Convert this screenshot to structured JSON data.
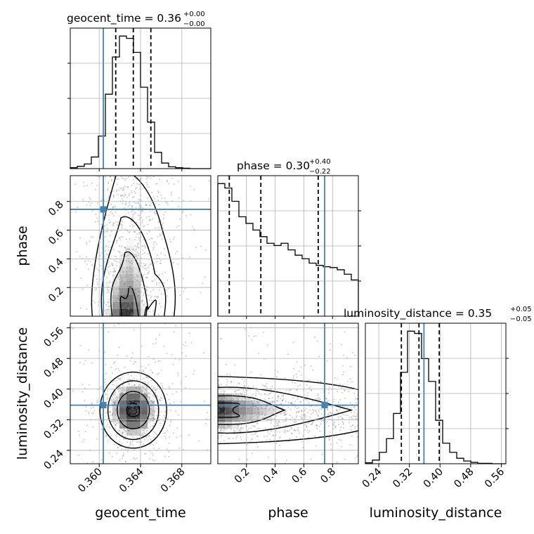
{
  "chart_data": {
    "type": "corner",
    "parameters": [
      "geocent_time",
      "phase",
      "luminosity_distance"
    ],
    "titles": [
      {
        "base": "geocent_time = 0.36",
        "sup": "+0.00",
        "sub": "−0.00"
      },
      {
        "base": "phase = 0.30",
        "sup": "+0.40",
        "sub": "−0.22"
      },
      {
        "base": "luminosity_distance = 0.35",
        "sup": "+0.05",
        "sub": "−0.05"
      }
    ],
    "axis_labels": {
      "x": [
        "geocent_time",
        "phase",
        "luminosity_distance"
      ],
      "y": [
        "phase",
        "luminosity_distance"
      ]
    },
    "ranges": {
      "geocent_time": [
        0.3572,
        0.3708
      ],
      "phase": [
        0.0,
        0.98
      ],
      "luminosity_distance": [
        0.205,
        0.572
      ]
    },
    "ticks": {
      "geocent_time": [
        0.36,
        0.364,
        0.368
      ],
      "phase": [
        0.2,
        0.4,
        0.6,
        0.8
      ],
      "luminosity_distance": [
        0.24,
        0.32,
        0.4,
        0.48,
        0.56
      ]
    },
    "tick_labels": {
      "geocent_time": [
        "0.360",
        "0.364",
        "0.368"
      ],
      "phase": [
        "0.2",
        "0.4",
        "0.6",
        "0.8"
      ],
      "luminosity_distance": [
        "0.24",
        "0.32",
        "0.40",
        "0.48",
        "0.56"
      ]
    },
    "truths": {
      "geocent_time": 0.3604,
      "phase": 0.745,
      "luminosity_distance": 0.358
    },
    "quantiles": {
      "geocent_time": [
        0.3616,
        0.3633,
        0.365
      ],
      "phase": [
        0.08,
        0.3,
        0.7
      ],
      "luminosity_distance": [
        0.299,
        0.345,
        0.398
      ]
    },
    "histograms": {
      "geocent_time": {
        "edges": [
          0.3572,
          0.35788,
          0.35856,
          0.35924,
          0.35992,
          0.3606,
          0.36128,
          0.36196,
          0.36264,
          0.36332,
          0.364,
          0.36468,
          0.36536,
          0.36604,
          0.36672,
          0.3674,
          0.36808,
          0.36876,
          0.36944,
          0.37012,
          0.3708
        ],
        "counts": [
          2,
          5,
          10,
          25,
          70,
          160,
          240,
          285,
          280,
          250,
          175,
          100,
          35,
          12,
          4,
          2,
          1,
          0,
          0,
          0
        ]
      },
      "phase": {
        "edges": [
          0.0,
          0.049,
          0.098,
          0.147,
          0.196,
          0.245,
          0.294,
          0.343,
          0.392,
          0.441,
          0.49,
          0.539,
          0.588,
          0.637,
          0.686,
          0.735,
          0.784,
          0.833,
          0.882,
          0.931,
          0.98
        ],
        "counts": [
          300,
          290,
          260,
          225,
          210,
          195,
          180,
          165,
          160,
          165,
          150,
          138,
          130,
          120,
          115,
          112,
          110,
          105,
          95,
          82
        ]
      },
      "luminosity_distance": {
        "edges": [
          0.205,
          0.2234,
          0.2417,
          0.2601,
          0.2784,
          0.2968,
          0.3151,
          0.3335,
          0.3518,
          0.3702,
          0.3885,
          0.4069,
          0.4252,
          0.4436,
          0.4619,
          0.4803,
          0.4986,
          0.517,
          0.5353,
          0.5537,
          0.572
        ],
        "counts": [
          2,
          8,
          25,
          55,
          110,
          200,
          290,
          285,
          230,
          180,
          95,
          45,
          25,
          12,
          6,
          3,
          1,
          1,
          0,
          0
        ]
      }
    },
    "grid": true
  },
  "colors": {
    "truth": "#4682b4",
    "hist": "#000000",
    "grid": "#b0b0b0",
    "scatter": "#808080"
  }
}
